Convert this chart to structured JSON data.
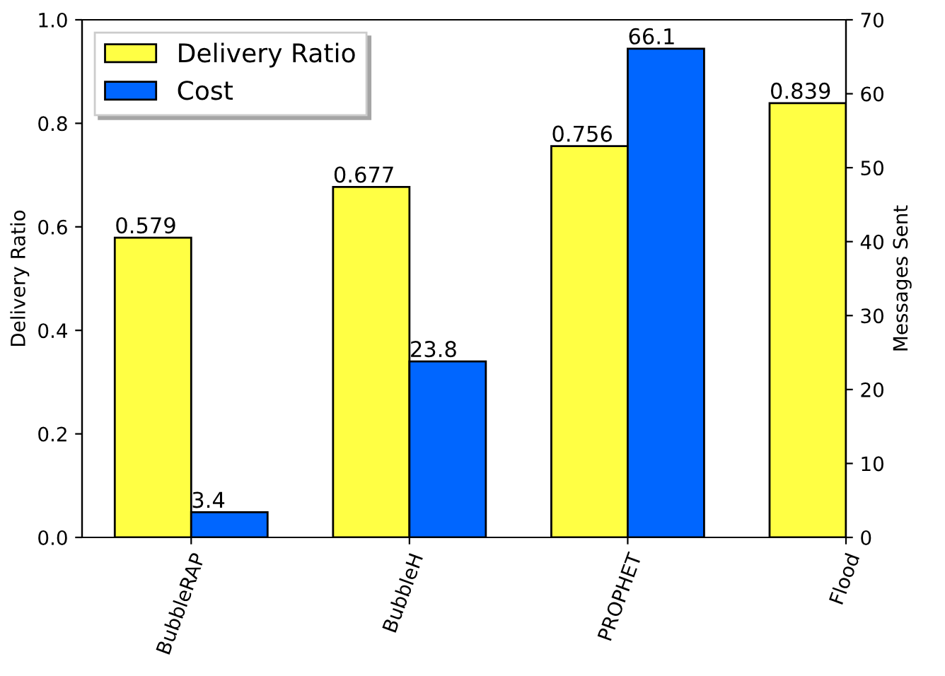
{
  "chart_data": {
    "type": "bar",
    "categories": [
      "BubbleRAP",
      "BubbleH",
      "PROPHET",
      "Flood"
    ],
    "ylabel": "Delivery Ratio",
    "y2label": "Messages Sent",
    "series": [
      {
        "name": "Delivery Ratio",
        "color": "#ffff44",
        "values": [
          0.579,
          0.677,
          0.756,
          0.839
        ]
      },
      {
        "name": "Cost",
        "color": "#0066ff",
        "axis": "y2",
        "values": [
          3.4,
          23.8,
          66.1,
          null
        ]
      }
    ],
    "ylim": [
      0,
      1.0
    ],
    "yticks": [
      {
        "value": 0,
        "label": "0.0"
      },
      0.2,
      0.4,
      0.6,
      0.8,
      {
        "value": 1.0,
        "label": "1.0"
      }
    ],
    "y2lim": [
      0,
      70
    ],
    "y2ticks": [
      0,
      10,
      20,
      30,
      40,
      50,
      60,
      70
    ],
    "data_labels": true,
    "legend": "top left",
    "grid": false
  }
}
